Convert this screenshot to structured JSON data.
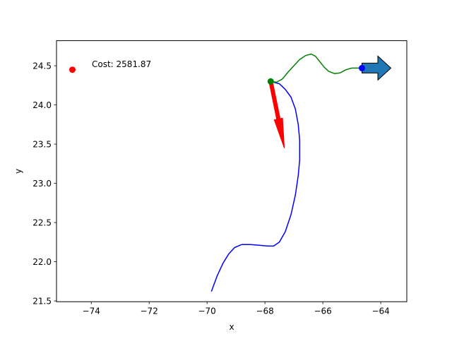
{
  "chart_data": {
    "type": "line",
    "xlabel": "x",
    "ylabel": "y",
    "xlim": [
      -75.2,
      -63.1
    ],
    "ylim": [
      21.49,
      24.82
    ],
    "x_ticks": [
      -74,
      -72,
      -70,
      -68,
      -66,
      -64
    ],
    "x_tick_labels": [
      "−74",
      "−72",
      "−70",
      "−68",
      "−66",
      "−64"
    ],
    "y_ticks": [
      21.5,
      22.0,
      22.5,
      23.0,
      23.5,
      24.0,
      24.5
    ],
    "y_tick_labels": [
      "21.5",
      "22.0",
      "22.5",
      "23.0",
      "23.5",
      "24.0",
      "24.5"
    ],
    "grid": false,
    "annotation": "Cost: 2581.87",
    "series": [
      {
        "color": "#0000ff",
        "x": [
          -69.85,
          -69.65,
          -69.45,
          -69.25,
          -69.05,
          -68.8,
          -68.5,
          -68.2,
          -67.9,
          -67.7,
          -67.5,
          -67.3,
          -67.1,
          -66.95,
          -66.85,
          -66.8,
          -66.8,
          -66.85,
          -66.95,
          -67.1,
          -67.3,
          -67.5,
          -67.7,
          -67.8
        ],
        "y": [
          21.62,
          21.82,
          21.98,
          22.1,
          22.18,
          22.22,
          22.22,
          22.21,
          22.2,
          22.2,
          22.25,
          22.38,
          22.6,
          22.85,
          23.1,
          23.3,
          23.55,
          23.75,
          23.95,
          24.1,
          24.2,
          24.27,
          24.29,
          24.3
        ]
      },
      {
        "color": "#008000",
        "x": [
          -67.8,
          -67.6,
          -67.4,
          -67.2,
          -67.0,
          -66.8,
          -66.6,
          -66.4,
          -66.25,
          -66.1,
          -65.95,
          -65.8,
          -65.6,
          -65.4,
          -65.2,
          -65.0,
          -64.8,
          -64.65
        ],
        "y": [
          24.3,
          24.29,
          24.33,
          24.42,
          24.5,
          24.58,
          24.63,
          24.65,
          24.62,
          24.55,
          24.48,
          24.43,
          24.4,
          24.41,
          24.45,
          24.47,
          24.47,
          24.47
        ]
      }
    ],
    "points": [
      {
        "x": -74.65,
        "y": 24.45,
        "color": "#ff0000"
      },
      {
        "x": -67.8,
        "y": 24.3,
        "color": "#008000"
      },
      {
        "x": -64.65,
        "y": 24.47,
        "color": "#0000ff"
      }
    ],
    "arrows": [
      {
        "x_start": -67.8,
        "y_start": 24.3,
        "x_end": -67.33,
        "y_end": 23.45,
        "color": "#ff0000",
        "edge": "#ff0000",
        "head": "narrow"
      },
      {
        "x_start": -64.65,
        "y_start": 24.47,
        "x_end": -63.65,
        "y_end": 24.47,
        "color": "#1f77b4",
        "edge": "#000000",
        "head": "wide"
      }
    ]
  }
}
